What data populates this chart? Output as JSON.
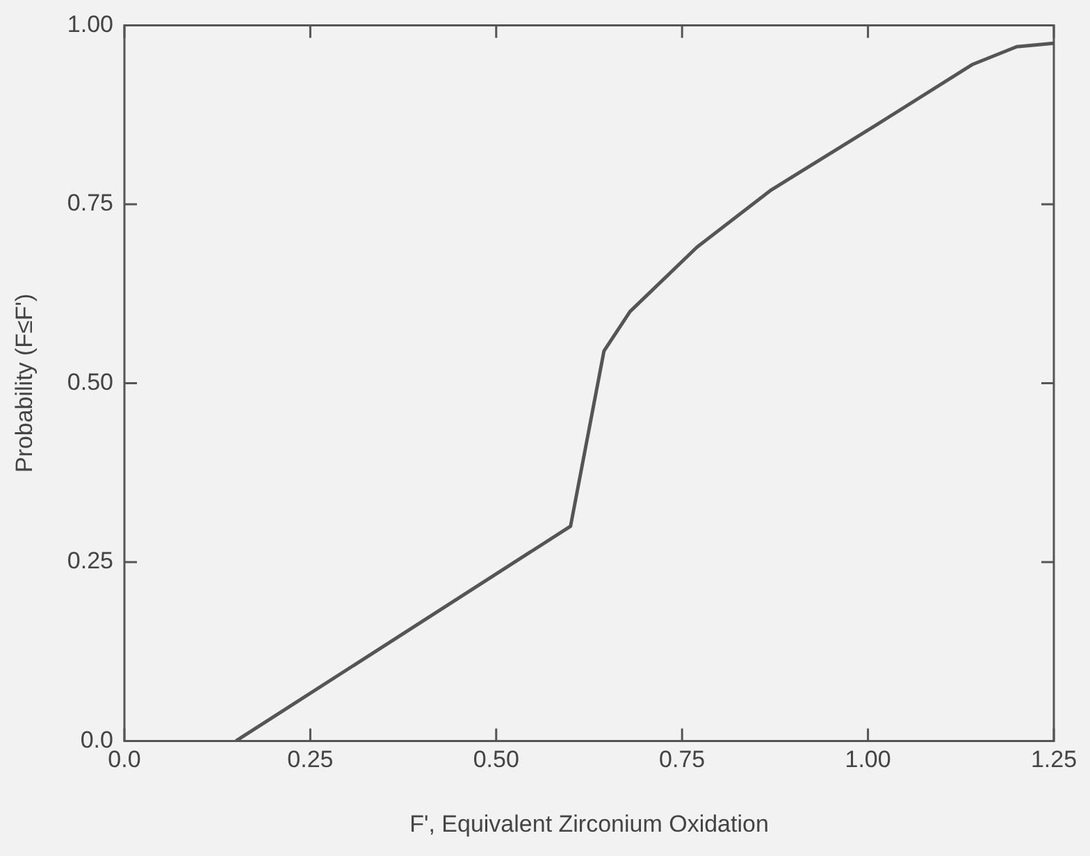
{
  "chart_data": {
    "type": "line",
    "xlabel": "F', Equivalent Zirconium Oxidation",
    "ylabel": "Probability (F≤F')",
    "series": [
      {
        "color": "#555555",
        "x": [
          0.15,
          0.6,
          0.645,
          0.68,
          0.77,
          0.87,
          1.01,
          1.14,
          1.2,
          1.25
        ],
        "values": [
          0,
          0.3,
          0.545,
          0.6,
          0.69,
          0.77,
          0.86,
          0.945,
          0.97,
          0.975
        ]
      }
    ],
    "xlim": [
      0,
      1.25
    ],
    "ylim": [
      0,
      1
    ],
    "xticks": [
      {
        "value": 0,
        "label": "0.0"
      },
      {
        "value": 0.25,
        "label": "0.25"
      },
      {
        "value": 0.5,
        "label": "0.50"
      },
      {
        "value": 0.75,
        "label": "0.75"
      },
      {
        "value": 1,
        "label": "1.00"
      },
      {
        "value": 1.25,
        "label": "1.25"
      }
    ],
    "yticks": [
      {
        "value": 0,
        "label": "0.0"
      },
      {
        "value": 0.25,
        "label": "0.25"
      },
      {
        "value": 0.5,
        "label": "0.50"
      },
      {
        "value": 0.75,
        "label": "0.75"
      },
      {
        "value": 1,
        "label": "1.00"
      }
    ],
    "grid": false,
    "legend": false,
    "marker": "none",
    "line_style": "solid"
  }
}
